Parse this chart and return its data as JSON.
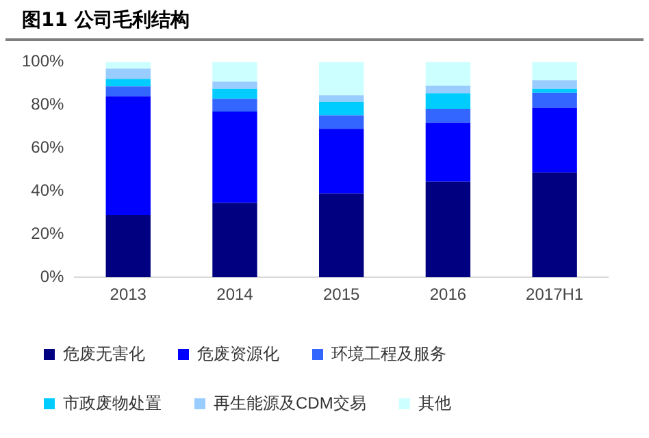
{
  "chart_data": {
    "type": "bar",
    "title": "图11 公司毛利结构",
    "stacked": true,
    "categories": [
      "2013",
      "2014",
      "2015",
      "2016",
      "2017H1"
    ],
    "series": [
      {
        "name": "危废无害化",
        "color": "#000080",
        "values": [
          29,
          34.5,
          38.9,
          44.4,
          48.6
        ]
      },
      {
        "name": "危废资源化",
        "color": "#0000ff",
        "values": [
          55,
          42.4,
          30,
          27.3,
          30.1
        ]
      },
      {
        "name": "环境工程及服务",
        "color": "#3366ff",
        "values": [
          4.6,
          5.9,
          6.3,
          6.5,
          6.9
        ]
      },
      {
        "name": "市政废物处置",
        "color": "#00ccff",
        "values": [
          3.5,
          4.7,
          6.3,
          7.2,
          1.9
        ]
      },
      {
        "name": "再生能源及CDM交易",
        "color": "#99ccff",
        "values": [
          4.8,
          3.3,
          3,
          3.5,
          4
        ]
      },
      {
        "name": "其他",
        "color": "#ccffff",
        "values": [
          3.1,
          9.2,
          15.5,
          11.1,
          8.5
        ]
      }
    ],
    "ylim": [
      0,
      100
    ],
    "yticks": [
      {
        "value": 0,
        "label": "0%"
      },
      {
        "value": 20,
        "label": "20%"
      },
      {
        "value": 40,
        "label": "40%"
      },
      {
        "value": 60,
        "label": "60%"
      },
      {
        "value": 80,
        "label": "80%"
      },
      {
        "value": 100,
        "label": "100%"
      }
    ],
    "grid": false,
    "legend": "bottom"
  }
}
